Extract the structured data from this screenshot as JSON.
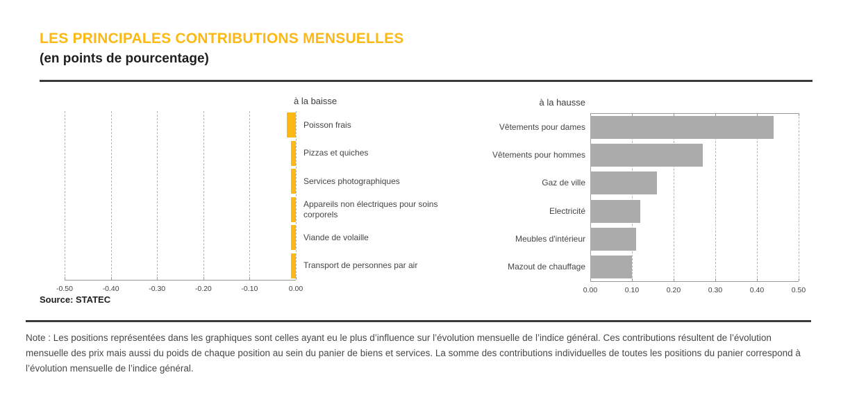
{
  "header": {
    "title": "LES PRINCIPALES CONTRIBUTIONS MENSUELLES",
    "subtitle": "(en points de pourcentage)"
  },
  "colors": {
    "accent_yellow": "#FCB813",
    "bar_gray": "#ABABAB",
    "text_dark": "#3c3c3c"
  },
  "chart_data": [
    {
      "type": "bar",
      "orientation": "horizontal",
      "title": "à la baisse",
      "categories": [
        "Poisson frais",
        "Pizzas et quiches",
        "Services photographiques",
        "Appareils non électriques pour soins corporels",
        "Viande de volaille",
        "Transport de personnes par air"
      ],
      "values": [
        -0.02,
        -0.01,
        -0.01,
        -0.01,
        -0.01,
        -0.01
      ],
      "xlim": [
        -0.5,
        0
      ],
      "tick_labels": [
        "-0.50",
        "-0.40",
        "-0.30",
        "-0.20",
        "-0.10",
        "0.00"
      ],
      "bar_color": "#FCB813",
      "grid": "dashed vertical",
      "legend_position": "none"
    },
    {
      "type": "bar",
      "orientation": "horizontal",
      "title": "à la hausse",
      "categories": [
        "Vêtements pour dames",
        "Vêtements pour hommes",
        "Gaz de ville",
        "Electricité",
        "Meubles d'intérieur",
        "Mazout de chauffage"
      ],
      "values": [
        0.44,
        0.27,
        0.16,
        0.12,
        0.11,
        0.1
      ],
      "xlim": [
        0,
        0.5
      ],
      "tick_labels": [
        "0.00",
        "0.10",
        "0.20",
        "0.30",
        "0.40",
        "0.50"
      ],
      "bar_color": "#ABABAB",
      "grid": "dashed vertical",
      "legend_position": "none"
    }
  ],
  "source_label": "Source: STATEC",
  "note": "Note : Les positions représentées dans les graphiques sont celles ayant eu le plus d’influence sur l’évolution mensuelle de l’indice général. Ces contributions résultent de l’évolution mensuelle des prix mais aussi du poids de chaque position au sein du panier de biens et services. La somme des contributions individuelles de toutes les positions du panier correspond à l’évolution mensuelle de l’indice général."
}
